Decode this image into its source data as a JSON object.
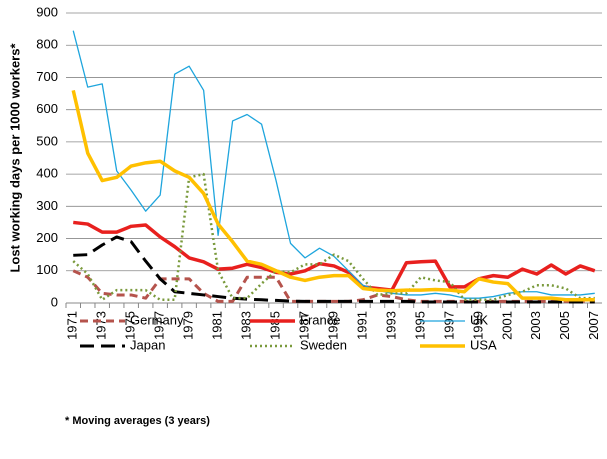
{
  "chart_data": {
    "type": "line",
    "y_label": "Lost working days per 1000 workers*",
    "footnote": "* Moving averages (3 years)",
    "categories": [
      "1971",
      null,
      "1973",
      null,
      "1975",
      null,
      "1977",
      null,
      "1979",
      null,
      "1981",
      null,
      "1983",
      null,
      "1985",
      null,
      "1987",
      null,
      "1989",
      null,
      "1991",
      null,
      "1993",
      null,
      "1995",
      null,
      "1997",
      null,
      "1999",
      null,
      "2001",
      null,
      "2003",
      null,
      "2005",
      null,
      "2007"
    ],
    "ylim": [
      0,
      900
    ],
    "yticks": [
      0,
      100,
      200,
      300,
      400,
      500,
      600,
      700,
      800,
      900
    ],
    "grid": true,
    "series": [
      {
        "name": "Germany",
        "color": "#b5534c",
        "style": "dashed",
        "values": [
          100,
          80,
          30,
          25,
          25,
          15,
          75,
          75,
          75,
          30,
          5,
          5,
          80,
          80,
          80,
          5,
          5,
          5,
          5,
          5,
          10,
          25,
          20,
          10,
          5,
          5,
          5,
          5,
          5,
          5,
          5,
          5,
          5,
          5,
          5,
          5,
          5
        ]
      },
      {
        "name": "France",
        "color": "#e8201e",
        "style": "solid",
        "values": [
          250,
          245,
          220,
          220,
          238,
          242,
          205,
          175,
          140,
          128,
          105,
          108,
          120,
          110,
          95,
          90,
          100,
          122,
          115,
          95,
          50,
          45,
          40,
          125,
          128,
          130,
          50,
          50,
          75,
          85,
          80,
          105,
          90,
          118,
          90,
          115,
          100
        ]
      },
      {
        "name": "UK",
        "color": "#1ea5dd",
        "style": "thin",
        "values": [
          845,
          670,
          680,
          410,
          350,
          285,
          335,
          710,
          735,
          660,
          210,
          565,
          585,
          555,
          380,
          185,
          140,
          170,
          145,
          100,
          55,
          40,
          30,
          25,
          25,
          30,
          25,
          15,
          15,
          20,
          30,
          35,
          35,
          25,
          25,
          25,
          30
        ]
      },
      {
        "name": "Japan",
        "color": "#000000",
        "style": "dashed",
        "values": [
          148,
          150,
          180,
          205,
          190,
          130,
          75,
          35,
          30,
          25,
          20,
          15,
          12,
          10,
          8,
          6,
          5,
          5,
          5,
          5,
          5,
          5,
          5,
          5,
          3,
          3,
          3,
          3,
          3,
          3,
          3,
          3,
          3,
          3,
          3,
          3,
          3
        ]
      },
      {
        "name": "Sweden",
        "color": "#7a9a3c",
        "style": "dotted",
        "values": [
          130,
          90,
          10,
          40,
          40,
          40,
          10,
          10,
          390,
          400,
          100,
          15,
          15,
          60,
          100,
          95,
          120,
          120,
          150,
          130,
          75,
          25,
          30,
          30,
          80,
          70,
          65,
          10,
          10,
          10,
          25,
          35,
          55,
          55,
          45,
          15,
          15
        ]
      },
      {
        "name": "USA",
        "color": "#ffc000",
        "style": "solid",
        "values": [
          660,
          465,
          380,
          390,
          425,
          435,
          440,
          410,
          390,
          340,
          245,
          190,
          130,
          120,
          100,
          80,
          70,
          80,
          85,
          85,
          45,
          40,
          38,
          40,
          40,
          42,
          40,
          35,
          75,
          65,
          60,
          15,
          15,
          15,
          10,
          10,
          10
        ]
      }
    ]
  }
}
